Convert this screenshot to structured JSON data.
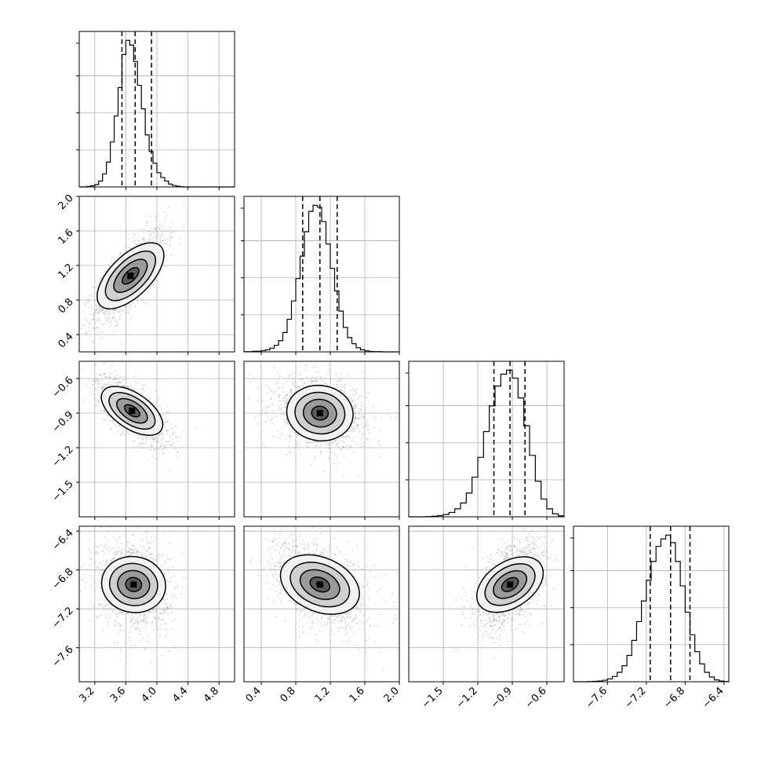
{
  "chart_data": {
    "type": "corner",
    "parameters": 4,
    "axes": [
      {
        "ticks": [
          3.2,
          3.6,
          4.0,
          4.4,
          4.8
        ],
        "tick_labels": [
          "3.2",
          "3.6",
          "4.0",
          "4.4",
          "4.8"
        ],
        "range": [
          3.0,
          5.0
        ]
      },
      {
        "ticks": [
          0.4,
          0.8,
          1.2,
          1.6,
          2.0
        ],
        "tick_labels": [
          "0.4",
          "0.8",
          "1.2",
          "1.6",
          "2.0"
        ],
        "range": [
          0.2,
          2.0
        ]
      },
      {
        "ticks": [
          -1.5,
          -1.2,
          -0.9,
          -0.6
        ],
        "tick_labels": [
          "−1.5",
          "−1.2",
          "−0.9",
          "−0.6"
        ],
        "range": [
          -1.8,
          -0.45
        ]
      },
      {
        "ticks": [
          -7.6,
          -7.2,
          -6.8,
          -6.4
        ],
        "tick_labels": [
          "−7.6",
          "−7.2",
          "−6.8",
          "−6.4"
        ],
        "range": [
          -7.95,
          -6.35
        ]
      }
    ],
    "quantiles": [
      [
        3.55,
        3.72,
        3.93
      ],
      [
        0.88,
        1.08,
        1.28
      ],
      [
        -1.06,
        -0.92,
        -0.79
      ],
      [
        -7.16,
        -6.95,
        -6.75
      ]
    ],
    "histograms": [
      {
        "bin_edges": [
          3.0,
          3.1,
          3.15,
          3.2,
          3.25,
          3.3,
          3.35,
          3.4,
          3.45,
          3.5,
          3.55,
          3.6,
          3.65,
          3.7,
          3.75,
          3.8,
          3.85,
          3.9,
          3.95,
          4.0,
          4.05,
          4.1,
          4.15,
          4.2,
          4.25,
          4.3,
          4.35,
          4.4,
          4.45,
          4.5,
          4.55,
          4.6,
          4.65,
          4.7,
          4.75,
          4.8,
          5.0
        ],
        "counts": [
          0,
          2,
          5,
          10,
          25,
          55,
          105,
          190,
          300,
          420,
          560,
          620,
          600,
          530,
          430,
          330,
          220,
          150,
          100,
          60,
          40,
          25,
          12,
          6,
          3,
          1,
          0,
          0,
          0,
          0,
          0,
          0,
          0,
          0,
          0,
          0
        ]
      },
      {
        "bin_edges": [
          0.2,
          0.3,
          0.4,
          0.45,
          0.5,
          0.55,
          0.6,
          0.65,
          0.7,
          0.75,
          0.8,
          0.85,
          0.9,
          0.95,
          1.0,
          1.05,
          1.1,
          1.15,
          1.2,
          1.25,
          1.3,
          1.35,
          1.4,
          1.45,
          1.5,
          1.55,
          1.6,
          1.65,
          1.7,
          1.8,
          2.0
        ],
        "counts": [
          1,
          3,
          6,
          10,
          18,
          32,
          55,
          95,
          160,
          250,
          360,
          470,
          590,
          690,
          720,
          710,
          640,
          530,
          410,
          300,
          200,
          120,
          70,
          40,
          20,
          10,
          5,
          2,
          1,
          0
        ]
      },
      {
        "bin_edges": [
          -1.8,
          -1.75,
          -1.7,
          -1.65,
          -1.6,
          -1.55,
          -1.5,
          -1.45,
          -1.4,
          -1.35,
          -1.3,
          -1.25,
          -1.2,
          -1.15,
          -1.1,
          -1.05,
          -1.0,
          -0.95,
          -0.9,
          -0.85,
          -0.8,
          -0.75,
          -0.7,
          -0.65,
          -0.6,
          -0.55,
          -0.5,
          -0.45
        ],
        "counts": [
          0,
          0,
          0,
          1,
          3,
          6,
          12,
          22,
          40,
          70,
          120,
          200,
          300,
          430,
          560,
          660,
          720,
          740,
          700,
          600,
          460,
          310,
          180,
          90,
          40,
          15,
          5
        ]
      },
      {
        "bin_edges": [
          -7.95,
          -7.8,
          -7.75,
          -7.7,
          -7.65,
          -7.6,
          -7.55,
          -7.5,
          -7.45,
          -7.4,
          -7.35,
          -7.3,
          -7.25,
          -7.2,
          -7.15,
          -7.1,
          -7.05,
          -7.0,
          -6.95,
          -6.9,
          -6.85,
          -6.8,
          -6.75,
          -6.7,
          -6.65,
          -6.6,
          -6.55,
          -6.5,
          -6.45,
          -6.4,
          -6.35
        ],
        "counts": [
          0,
          1,
          2,
          4,
          8,
          15,
          28,
          50,
          85,
          140,
          220,
          320,
          430,
          540,
          640,
          720,
          760,
          780,
          740,
          640,
          510,
          370,
          250,
          160,
          95,
          50,
          25,
          10,
          4,
          1
        ]
      }
    ],
    "joint_modes": {
      "1_0": {
        "center": [
          3.66,
          1.08
        ],
        "spread": [
          0.17,
          0.2
        ],
        "rho": 0.75
      },
      "2_0": {
        "center": [
          3.68,
          -0.88
        ],
        "spread": [
          0.17,
          0.11
        ],
        "rho": -0.7
      },
      "2_1": {
        "center": [
          1.08,
          -0.9
        ],
        "spread": [
          0.2,
          0.11
        ],
        "rho": -0.2
      },
      "3_0": {
        "center": [
          3.7,
          -6.95
        ],
        "spread": [
          0.17,
          0.17
        ],
        "rho": -0.15
      },
      "3_1": {
        "center": [
          1.08,
          -6.95
        ],
        "spread": [
          0.2,
          0.17
        ],
        "rho": -0.45
      },
      "3_2": {
        "center": [
          -0.92,
          -6.95
        ],
        "spread": [
          0.11,
          0.17
        ],
        "rho": 0.5
      }
    },
    "contour_levels_sigma": [
      0.5,
      1.0,
      1.5,
      2.0
    ],
    "grid": true,
    "colors": {
      "line": "#000000",
      "grid": "#b0b0b0",
      "points": "#999999"
    }
  }
}
